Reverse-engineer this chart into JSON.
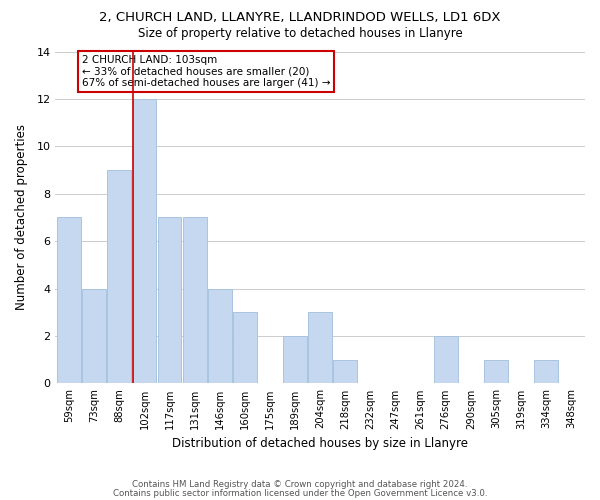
{
  "title": "2, CHURCH LAND, LLANYRE, LLANDRINDOD WELLS, LD1 6DX",
  "subtitle": "Size of property relative to detached houses in Llanyre",
  "xlabel": "Distribution of detached houses by size in Llanyre",
  "ylabel": "Number of detached properties",
  "bar_labels": [
    "59sqm",
    "73sqm",
    "88sqm",
    "102sqm",
    "117sqm",
    "131sqm",
    "146sqm",
    "160sqm",
    "175sqm",
    "189sqm",
    "204sqm",
    "218sqm",
    "232sqm",
    "247sqm",
    "261sqm",
    "276sqm",
    "290sqm",
    "305sqm",
    "319sqm",
    "334sqm",
    "348sqm"
  ],
  "bar_values": [
    7,
    4,
    9,
    12,
    7,
    7,
    4,
    3,
    0,
    2,
    3,
    1,
    0,
    0,
    0,
    2,
    0,
    1,
    0,
    1,
    0
  ],
  "bar_color": "#c5d8f0",
  "bar_edge_color": "#a8c4e0",
  "highlight_bar_index": 3,
  "highlight_line_color": "#cc0000",
  "annotation_text": "2 CHURCH LAND: 103sqm\n← 33% of detached houses are smaller (20)\n67% of semi-detached houses are larger (41) →",
  "annotation_box_edgecolor": "#cc0000",
  "ylim": [
    0,
    14
  ],
  "yticks": [
    0,
    2,
    4,
    6,
    8,
    10,
    12,
    14
  ],
  "footer1": "Contains HM Land Registry data © Crown copyright and database right 2024.",
  "footer2": "Contains public sector information licensed under the Open Government Licence v3.0.",
  "background_color": "#ffffff",
  "grid_color": "#cccccc"
}
